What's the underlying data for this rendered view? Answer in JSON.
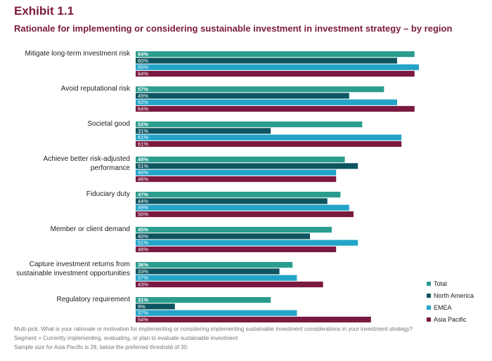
{
  "header": {
    "exhibit": "Exhibit 1.1",
    "subtitle": "Rationale for implementing or considering sustainable investment in investment strategy – by region"
  },
  "chart_data": {
    "type": "bar",
    "orientation": "horizontal",
    "categories": [
      [
        "Mitigate long-term investment risk"
      ],
      [
        "Avoid reputational risk"
      ],
      [
        "Societal good"
      ],
      [
        "Achieve better risk-adjusted",
        "performance"
      ],
      [
        "Fiduciary duty"
      ],
      [
        "Member or client demand"
      ],
      [
        "Capture investment returns from",
        "sustainable investment opportunities"
      ],
      [
        "Regulatory requirement"
      ]
    ],
    "series": [
      {
        "name": "Total",
        "color": "#2a9d8f",
        "values": [
          64,
          57,
          52,
          48,
          47,
          45,
          36,
          31
        ]
      },
      {
        "name": "North America",
        "color": "#0d5560",
        "values": [
          60,
          49,
          31,
          51,
          44,
          40,
          33,
          9
        ]
      },
      {
        "name": "EMEA",
        "color": "#23a4c8",
        "values": [
          65,
          60,
          61,
          46,
          49,
          51,
          37,
          37
        ]
      },
      {
        "name": "Asia Pacific",
        "color": "#7a1a40",
        "values": [
          64,
          64,
          61,
          46,
          50,
          46,
          43,
          54
        ]
      }
    ],
    "value_suffix": "%",
    "xlim": [
      0,
      100
    ],
    "legend_position": "bottom-right"
  },
  "notes": [
    "Multi-pick. What is your rationale or motivation for implementing or considering implementing sustainable investment considerations in your investment strategy?",
    "Segment = Currently implementing, evaluating, or plan to evaluate sustainable investment",
    "Sample size for Asia Pacific is 28, below the preferred threshold of 30."
  ]
}
